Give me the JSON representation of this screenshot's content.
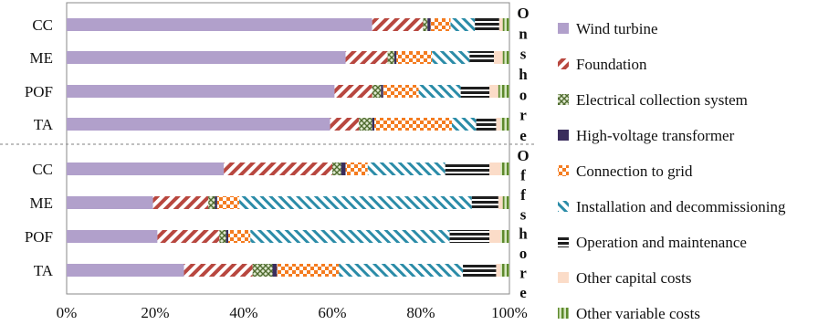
{
  "chart_data": {
    "type": "bar",
    "stacked": "100%",
    "orientation": "horizontal",
    "x_ticks": [
      "0%",
      "20%",
      "40%",
      "60%",
      "80%",
      "100%"
    ],
    "xlim": [
      0,
      100
    ],
    "legend_position": "right",
    "series_names": [
      "Wind turbine",
      "Foundation",
      "Electrical collection system",
      "High-voltage transformer",
      "Connection to grid",
      "Installation and decommissioning",
      "Operation and maintenance",
      "Other capital costs",
      "Other variable costs"
    ],
    "groups": [
      {
        "label": "Onshore",
        "categories": [
          "CC",
          "ME",
          "POF",
          "TA"
        ],
        "values": [
          [
            69.0,
            11.5,
            1.0,
            0.7,
            4.5,
            5.5,
            5.5,
            0.8,
            1.5
          ],
          [
            63.0,
            9.5,
            1.5,
            0.5,
            8.0,
            8.5,
            5.5,
            2.0,
            1.5
          ],
          [
            60.5,
            8.5,
            2.0,
            0.5,
            8.0,
            9.5,
            6.5,
            2.0,
            2.5
          ],
          [
            59.5,
            6.5,
            3.0,
            0.5,
            17.5,
            5.5,
            4.5,
            1.0,
            2.0
          ]
        ]
      },
      {
        "label": "Offshore",
        "categories": [
          "CC",
          "ME",
          "POF",
          "TA"
        ],
        "values": [
          [
            35.5,
            24.5,
            2.0,
            1.0,
            5.0,
            17.5,
            10.0,
            2.5,
            2.0
          ],
          [
            19.5,
            12.5,
            1.5,
            0.5,
            5.0,
            52.5,
            6.0,
            1.0,
            1.5
          ],
          [
            20.5,
            14.0,
            1.5,
            0.5,
            5.0,
            45.0,
            9.0,
            2.5,
            2.0
          ],
          [
            26.5,
            15.5,
            4.5,
            1.0,
            14.0,
            28.0,
            7.5,
            1.0,
            2.0
          ]
        ]
      }
    ],
    "side_labels": [
      "Onshore",
      "Offshore"
    ]
  },
  "colors": {
    "wind_turbine": "#b1a0cb",
    "foundation": "#b8473f",
    "electrical": "#8aa85a",
    "transformer": "#3a2d5c",
    "grid": "#f47c20",
    "installation": "#2b8ca8",
    "om": "#1e1e1e",
    "other_capital": "#fbdcc8",
    "other_variable": "#5d8a2c"
  }
}
